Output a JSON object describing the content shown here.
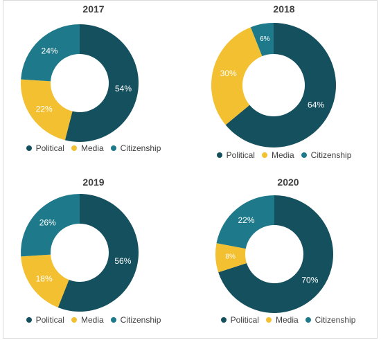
{
  "colors": {
    "political": "#15505e",
    "media": "#f3c031",
    "citizenship": "#1e7a8a",
    "text": "#404040"
  },
  "legend": [
    "Political",
    "Media",
    "Citizenship"
  ],
  "chart_data": [
    {
      "type": "pie",
      "title": "2017",
      "categories": [
        "Political",
        "Media",
        "Citizenship"
      ],
      "values": [
        54,
        22,
        24
      ],
      "labels": [
        "54%",
        "22%",
        "24%"
      ]
    },
    {
      "type": "pie",
      "title": "2018",
      "categories": [
        "Political",
        "Media",
        "Citizenship"
      ],
      "values": [
        64,
        30,
        6
      ],
      "labels": [
        "64%",
        "30%",
        "6%"
      ]
    },
    {
      "type": "pie",
      "title": "2019",
      "categories": [
        "Political",
        "Media",
        "Citizenship"
      ],
      "values": [
        56,
        18,
        26
      ],
      "labels": [
        "56%",
        "18%",
        "26%"
      ]
    },
    {
      "type": "pie",
      "title": "2020",
      "categories": [
        "Political",
        "Media",
        "Citizenship"
      ],
      "values": [
        70,
        8,
        22
      ],
      "labels": [
        "70%",
        "8%",
        "22%"
      ]
    }
  ]
}
